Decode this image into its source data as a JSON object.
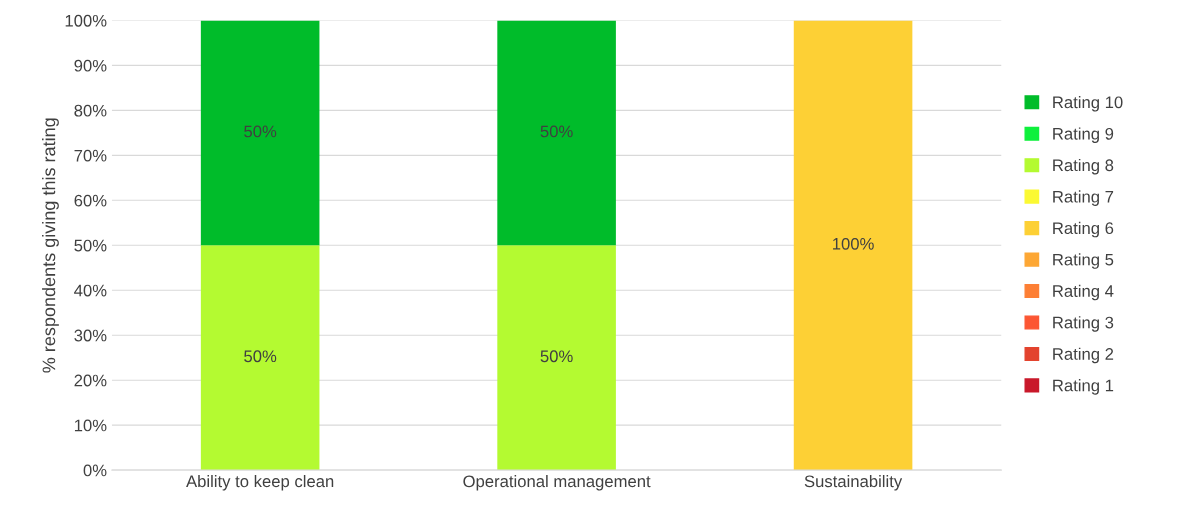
{
  "chart_data": {
    "type": "bar",
    "stacked": true,
    "ylabel": "% respondents giving this rating",
    "categories": [
      "Ability to keep clean",
      "Operational management",
      "Sustainability"
    ],
    "series": [
      {
        "name": "Rating 1",
        "color": "#c9182a",
        "values": [
          0,
          0,
          0
        ],
        "value_labels": [
          null,
          null,
          null
        ]
      },
      {
        "name": "Rating 2",
        "color": "#e3432e",
        "values": [
          0,
          0,
          0
        ],
        "value_labels": [
          null,
          null,
          null
        ]
      },
      {
        "name": "Rating 3",
        "color": "#fc5633",
        "values": [
          0,
          0,
          0
        ],
        "value_labels": [
          null,
          null,
          null
        ]
      },
      {
        "name": "Rating 4",
        "color": "#fd7f35",
        "values": [
          0,
          0,
          0
        ],
        "value_labels": [
          null,
          null,
          null
        ]
      },
      {
        "name": "Rating 5",
        "color": "#fda734",
        "values": [
          0,
          0,
          0
        ],
        "value_labels": [
          null,
          null,
          null
        ]
      },
      {
        "name": "Rating 6",
        "color": "#fdd035",
        "values": [
          0,
          0,
          100
        ],
        "value_labels": [
          null,
          null,
          "100%"
        ]
      },
      {
        "name": "Rating 7",
        "color": "#fbf933",
        "values": [
          0,
          0,
          0
        ],
        "value_labels": [
          null,
          null,
          null
        ]
      },
      {
        "name": "Rating 8",
        "color": "#b4fa31",
        "values": [
          50,
          50,
          0
        ],
        "value_labels": [
          "50%",
          "50%",
          null
        ]
      },
      {
        "name": "Rating 9",
        "color": "#0ff03c",
        "values": [
          0,
          0,
          0
        ],
        "value_labels": [
          null,
          null,
          null
        ]
      },
      {
        "name": "Rating 10",
        "color": "#00bc2a",
        "values": [
          50,
          50,
          0
        ],
        "value_labels": [
          "50%",
          "50%",
          null
        ]
      }
    ],
    "ylim": [
      0,
      100
    ],
    "yticks": [
      {
        "value": 0,
        "label": "0%"
      },
      {
        "value": 10,
        "label": "10%"
      },
      {
        "value": 20,
        "label": "20%"
      },
      {
        "value": 30,
        "label": "30%"
      },
      {
        "value": 40,
        "label": "40%"
      },
      {
        "value": 50,
        "label": "50%"
      },
      {
        "value": 60,
        "label": "60%"
      },
      {
        "value": 70,
        "label": "70%"
      },
      {
        "value": 80,
        "label": "80%"
      },
      {
        "value": 90,
        "label": "90%"
      },
      {
        "value": 100,
        "label": "100%"
      }
    ],
    "grid": "y",
    "legend": "right"
  }
}
